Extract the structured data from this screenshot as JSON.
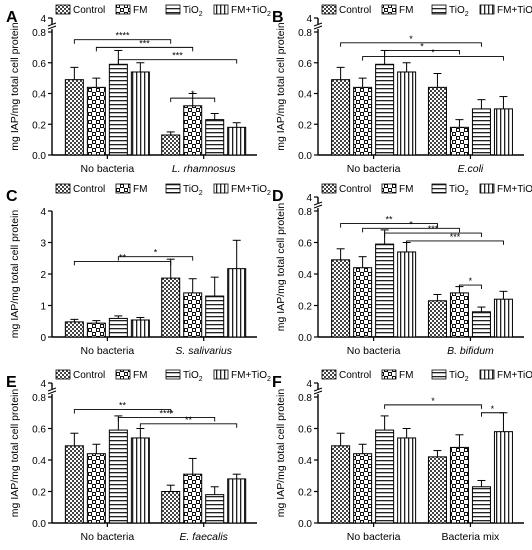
{
  "legend": {
    "items": [
      {
        "label": "Control",
        "pattern": "checker"
      },
      {
        "label": "FM",
        "pattern": "weave"
      },
      {
        "label": "TiO2",
        "pattern": "hlines"
      },
      {
        "label": "FM+TiO2",
        "pattern": "vlines"
      }
    ],
    "tio2_prefix": "TiO",
    "sub": "2",
    "fm_tio2_prefix": "FM+TiO"
  },
  "common": {
    "ylabel": "mg IAP/mg total cell protein",
    "group0": "No bacteria"
  },
  "chart_data": [
    {
      "type": "bar",
      "panel": "A",
      "ybreak": true,
      "ylim": [
        0,
        0.8
      ],
      "yticks": [
        "0.0",
        "0.2",
        "0.4",
        "0.6",
        "0.8"
      ],
      "ytop_label": "4",
      "group_labels": [
        "No bacteria",
        "L. rhamnosus"
      ],
      "italic_group2": true,
      "series": [
        {
          "name": "Control",
          "values": [
            0.49,
            0.13
          ],
          "errors": [
            0.08,
            0.02
          ]
        },
        {
          "name": "FM",
          "values": [
            0.44,
            0.32
          ],
          "errors": [
            0.06,
            0.08
          ]
        },
        {
          "name": "TiO2",
          "values": [
            0.59,
            0.23
          ],
          "errors": [
            0.09,
            0.04
          ]
        },
        {
          "name": "FM+TiO2",
          "values": [
            0.54,
            0.18
          ],
          "errors": [
            0.06,
            0.03
          ]
        }
      ],
      "significance": [
        {
          "from": [
            0,
            0
          ],
          "to": [
            1,
            0
          ],
          "y": 0.75,
          "stars": "****"
        },
        {
          "from": [
            0,
            1
          ],
          "to": [
            1,
            1
          ],
          "y": 0.7,
          "stars": "***"
        },
        {
          "from": [
            0,
            2
          ],
          "to": [
            1,
            3
          ],
          "y": 0.62,
          "stars": "***"
        },
        {
          "from": [
            1,
            0
          ],
          "to": [
            1,
            2
          ],
          "y": 0.37,
          "stars": "*"
        }
      ]
    },
    {
      "type": "bar",
      "panel": "B",
      "ybreak": true,
      "ylim": [
        0,
        0.8
      ],
      "yticks": [
        "0.0",
        "0.2",
        "0.4",
        "0.6",
        "0.8"
      ],
      "ytop_label": "4",
      "group_labels": [
        "No bacteria",
        "E.coli"
      ],
      "italic_group2": true,
      "series": [
        {
          "name": "Control",
          "values": [
            0.49,
            0.44
          ],
          "errors": [
            0.08,
            0.09
          ]
        },
        {
          "name": "FM",
          "values": [
            0.44,
            0.18
          ],
          "errors": [
            0.06,
            0.05
          ]
        },
        {
          "name": "TiO2",
          "values": [
            0.59,
            0.3
          ],
          "errors": [
            0.09,
            0.06
          ]
        },
        {
          "name": "FM+TiO2",
          "values": [
            0.54,
            0.3
          ],
          "errors": [
            0.06,
            0.08
          ]
        }
      ],
      "significance": [
        {
          "from": [
            0,
            0
          ],
          "to": [
            1,
            2
          ],
          "y": 0.73,
          "stars": "*"
        },
        {
          "from": [
            0,
            2
          ],
          "to": [
            1,
            1
          ],
          "y": 0.68,
          "stars": "*"
        },
        {
          "from": [
            0,
            1
          ],
          "to": [
            1,
            3
          ],
          "y": 0.64,
          "stars": "*"
        }
      ]
    },
    {
      "type": "bar",
      "panel": "C",
      "ybreak": false,
      "ylim": [
        0,
        4
      ],
      "yticks": [
        "0",
        "1",
        "2",
        "3",
        "4"
      ],
      "group_labels": [
        "No bacteria",
        "S. salivarius"
      ],
      "italic_group2": true,
      "series": [
        {
          "name": "Control",
          "values": [
            0.48,
            1.87
          ],
          "errors": [
            0.08,
            0.6
          ]
        },
        {
          "name": "FM",
          "values": [
            0.44,
            1.4
          ],
          "errors": [
            0.08,
            0.45
          ]
        },
        {
          "name": "TiO2",
          "values": [
            0.59,
            1.3
          ],
          "errors": [
            0.08,
            0.6
          ]
        },
        {
          "name": "FM+TiO2",
          "values": [
            0.54,
            2.17
          ],
          "errors": [
            0.08,
            0.9
          ]
        }
      ],
      "significance": [
        {
          "from": [
            0,
            0
          ],
          "to": [
            1,
            0
          ],
          "y": 2.4,
          "stars": "**"
        },
        {
          "from": [
            0,
            2
          ],
          "to": [
            1,
            1
          ],
          "y": 2.55,
          "stars": "*"
        }
      ]
    },
    {
      "type": "bar",
      "panel": "D",
      "ybreak": true,
      "ylim": [
        0,
        0.8
      ],
      "yticks": [
        "0.0",
        "0.2",
        "0.4",
        "0.6",
        "0.8"
      ],
      "ytop_label": "4",
      "group_labels": [
        "No bacteria",
        "B. bifidum"
      ],
      "italic_group2": true,
      "series": [
        {
          "name": "Control",
          "values": [
            0.49,
            0.23
          ],
          "errors": [
            0.07,
            0.04
          ]
        },
        {
          "name": "FM",
          "values": [
            0.44,
            0.28
          ],
          "errors": [
            0.07,
            0.04
          ]
        },
        {
          "name": "TiO2",
          "values": [
            0.59,
            0.16
          ],
          "errors": [
            0.09,
            0.03
          ]
        },
        {
          "name": "FM+TiO2",
          "values": [
            0.54,
            0.24
          ],
          "errors": [
            0.06,
            0.05
          ]
        }
      ],
      "significance": [
        {
          "from": [
            0,
            0
          ],
          "to": [
            1,
            0
          ],
          "y": 0.72,
          "stars": "**"
        },
        {
          "from": [
            0,
            1
          ],
          "to": [
            1,
            1
          ],
          "y": 0.69,
          "stars": "*"
        },
        {
          "from": [
            0,
            2
          ],
          "to": [
            1,
            2
          ],
          "y": 0.66,
          "stars": "***"
        },
        {
          "from": [
            0,
            3
          ],
          "to": [
            1,
            3
          ],
          "y": 0.61,
          "stars": "***"
        },
        {
          "from": [
            1,
            1
          ],
          "to": [
            1,
            2
          ],
          "y": 0.33,
          "stars": "*"
        }
      ]
    },
    {
      "type": "bar",
      "panel": "E",
      "ybreak": true,
      "ylim": [
        0,
        0.8
      ],
      "yticks": [
        "0.0",
        "0.2",
        "0.4",
        "0.6",
        "0.8"
      ],
      "ytop_label": "4",
      "group_labels": [
        "No bacteria",
        "E. faecalis"
      ],
      "italic_group2": true,
      "series": [
        {
          "name": "Control",
          "values": [
            0.49,
            0.2
          ],
          "errors": [
            0.08,
            0.04
          ]
        },
        {
          "name": "FM",
          "values": [
            0.44,
            0.31
          ],
          "errors": [
            0.06,
            0.1
          ]
        },
        {
          "name": "TiO2",
          "values": [
            0.59,
            0.18
          ],
          "errors": [
            0.09,
            0.05
          ]
        },
        {
          "name": "FM+TiO2",
          "values": [
            0.54,
            0.28
          ],
          "errors": [
            0.06,
            0.03
          ]
        }
      ],
      "significance": [
        {
          "from": [
            0,
            0
          ],
          "to": [
            1,
            0
          ],
          "y": 0.72,
          "stars": "**"
        },
        {
          "from": [
            0,
            2
          ],
          "to": [
            1,
            2
          ],
          "y": 0.67,
          "stars": "****"
        },
        {
          "from": [
            0,
            3
          ],
          "to": [
            1,
            3
          ],
          "y": 0.63,
          "stars": "**"
        }
      ]
    },
    {
      "type": "bar",
      "panel": "F",
      "ybreak": true,
      "ylim": [
        0,
        0.8
      ],
      "yticks": [
        "0.0",
        "0.2",
        "0.4",
        "0.6",
        "0.8"
      ],
      "ytop_label": "4",
      "group_labels": [
        "No bacteria",
        "Bacteria mix"
      ],
      "italic_group2": false,
      "series": [
        {
          "name": "Control",
          "values": [
            0.49,
            0.42
          ],
          "errors": [
            0.08,
            0.04
          ]
        },
        {
          "name": "FM",
          "values": [
            0.44,
            0.48
          ],
          "errors": [
            0.06,
            0.08
          ]
        },
        {
          "name": "TiO2",
          "values": [
            0.59,
            0.23
          ],
          "errors": [
            0.09,
            0.04
          ]
        },
        {
          "name": "FM+TiO2",
          "values": [
            0.54,
            0.58
          ],
          "errors": [
            0.06,
            0.12
          ]
        }
      ],
      "significance": [
        {
          "from": [
            0,
            2
          ],
          "to": [
            1,
            2
          ],
          "y": 0.75,
          "stars": "*"
        },
        {
          "from": [
            1,
            2
          ],
          "to": [
            1,
            3
          ],
          "y": 0.7,
          "stars": "*"
        }
      ]
    }
  ]
}
